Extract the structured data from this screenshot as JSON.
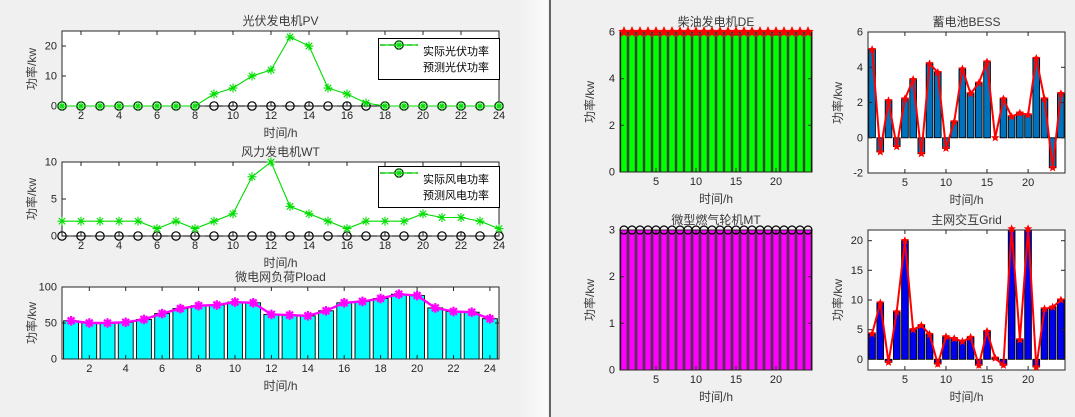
{
  "colors": {
    "figure_bg": "#f0f0f0",
    "axis": "#262626",
    "black": "#000000",
    "green": "#00dd00",
    "de_green": "#00ff00",
    "cyan": "#00ffff",
    "magenta": "#ff00ff",
    "red": "#ff0000",
    "bess_blue": "#0072bd",
    "grid_blue": "#0000ee"
  },
  "chart_data": [
    {
      "type": "line",
      "title": "光伏发电机PV",
      "xlabel": "时间/h",
      "ylabel": "功率/kw",
      "x": [
        1,
        2,
        3,
        4,
        5,
        6,
        7,
        8,
        9,
        10,
        11,
        12,
        13,
        14,
        15,
        16,
        17,
        18,
        19,
        20,
        21,
        22,
        23,
        24
      ],
      "xlim": [
        1,
        24
      ],
      "ylim": [
        0,
        25
      ],
      "xticks": [
        2,
        4,
        6,
        8,
        10,
        12,
        14,
        16,
        18,
        20,
        22,
        24
      ],
      "yticks": [
        0,
        10,
        20
      ],
      "legend_position": "northeast",
      "series": [
        {
          "name": "实际光伏功率",
          "color": "#000000",
          "style": "dashed",
          "marker": "circle",
          "width": 1.1,
          "values": [
            0,
            0,
            0,
            0,
            0,
            0,
            0,
            0,
            0,
            0,
            0,
            0,
            0,
            0,
            0,
            0,
            0,
            0,
            0,
            0,
            0,
            0,
            0,
            0
          ]
        },
        {
          "name": "预测光伏功率",
          "color": "#00dd00",
          "style": "solid",
          "marker": "asterisk",
          "width": 1.1,
          "values": [
            0,
            0,
            0,
            0,
            0,
            0,
            0,
            0,
            4,
            6,
            10,
            12,
            23,
            20,
            6,
            4,
            1,
            0,
            0,
            0,
            0,
            0,
            0,
            0
          ]
        }
      ]
    },
    {
      "type": "line",
      "title": "风力发电机WT",
      "xlabel": "时间/h",
      "ylabel": "功率/kw",
      "x": [
        1,
        2,
        3,
        4,
        5,
        6,
        7,
        8,
        9,
        10,
        11,
        12,
        13,
        14,
        15,
        16,
        17,
        18,
        19,
        20,
        21,
        22,
        23,
        24
      ],
      "xlim": [
        1,
        24
      ],
      "ylim": [
        0,
        10
      ],
      "xticks": [
        2,
        4,
        6,
        8,
        10,
        12,
        14,
        16,
        18,
        20,
        22,
        24
      ],
      "yticks": [
        0,
        5,
        10
      ],
      "legend_position": "northeast",
      "series": [
        {
          "name": "实际风电功率",
          "color": "#000000",
          "style": "dashed",
          "marker": "circle",
          "width": 1.1,
          "values": [
            0,
            0,
            0,
            0,
            0,
            0,
            0,
            0,
            0,
            0,
            0,
            0,
            0,
            0,
            0,
            0,
            0,
            0,
            0,
            0,
            0,
            0,
            0,
            0
          ]
        },
        {
          "name": "预测风电功率",
          "color": "#00dd00",
          "style": "solid",
          "marker": "asterisk",
          "width": 1.1,
          "values": [
            2,
            2,
            2,
            2,
            2,
            1,
            2,
            1,
            2,
            3,
            8,
            10,
            4,
            3,
            2,
            1,
            2,
            2,
            2,
            3,
            2.5,
            2.5,
            2,
            1
          ]
        }
      ]
    },
    {
      "type": "bar+line",
      "title": "微电网负荷Pload",
      "xlabel": "时间/h",
      "ylabel": "功率/kw",
      "x": [
        1,
        2,
        3,
        4,
        5,
        6,
        7,
        8,
        9,
        10,
        11,
        12,
        13,
        14,
        15,
        16,
        17,
        18,
        19,
        20,
        21,
        22,
        23,
        24
      ],
      "xlim": [
        0.5,
        24.5
      ],
      "ylim": [
        0,
        100
      ],
      "xticks": [
        2,
        4,
        6,
        8,
        10,
        12,
        14,
        16,
        18,
        20,
        22,
        24
      ],
      "yticks": [
        0,
        50,
        100
      ],
      "bar_color": "#00ffff",
      "values": [
        53,
        50,
        50,
        51,
        55,
        63,
        70,
        74,
        75,
        79,
        78,
        62,
        61,
        60,
        67,
        78,
        80,
        84,
        90,
        88,
        71,
        66,
        65,
        56
      ],
      "line": {
        "color": "#ff00ff",
        "marker": "asterisk-bold",
        "width": 2.4
      }
    },
    {
      "type": "bar",
      "title": "柴油发电机DE",
      "xlabel": "时间/h",
      "ylabel": "功率/kw",
      "x": [
        1,
        2,
        3,
        4,
        5,
        6,
        7,
        8,
        9,
        10,
        11,
        12,
        13,
        14,
        15,
        16,
        17,
        18,
        19,
        20,
        21,
        22,
        23,
        24
      ],
      "xlim": [
        0.5,
        24.5
      ],
      "ylim": [
        0,
        6
      ],
      "xticks": [
        5,
        10,
        15,
        20
      ],
      "yticks": [
        0,
        2,
        4,
        6
      ],
      "bar_color": "#00ff00",
      "values": [
        6,
        6,
        6,
        6,
        6,
        6,
        6,
        6,
        6,
        6,
        6,
        6,
        6,
        6,
        6,
        6,
        6,
        6,
        6,
        6,
        6,
        6,
        6,
        6
      ],
      "marker": {
        "type": "star5",
        "color": "#ff0000",
        "size": 6
      }
    },
    {
      "type": "bar+line",
      "title": "蓄电池BESS",
      "xlabel": "时间/h",
      "ylabel": "功率/kw",
      "x": [
        1,
        2,
        3,
        4,
        5,
        6,
        7,
        8,
        9,
        10,
        11,
        12,
        13,
        14,
        15,
        16,
        17,
        18,
        19,
        20,
        21,
        22,
        23,
        24
      ],
      "xlim": [
        0.5,
        24.5
      ],
      "ylim": [
        -2,
        6
      ],
      "xticks": [
        5,
        10,
        15,
        20
      ],
      "yticks": [
        -2,
        0,
        2,
        4,
        6
      ],
      "bar_color": "#0072bd",
      "values": [
        5,
        -0.8,
        2.1,
        -0.5,
        2.2,
        3.3,
        -0.9,
        4.2,
        3.7,
        -0.6,
        0.9,
        3.9,
        2.5,
        3.1,
        4.3,
        0,
        2.2,
        1.2,
        1.4,
        1.3,
        4.5,
        2.2,
        -1.7,
        2.5
      ],
      "line": {
        "color": "#ff0000",
        "marker": "star5",
        "width": 2,
        "size": 4.5
      }
    },
    {
      "type": "bar",
      "title": "微型燃气轮机MT",
      "xlabel": "时间/h",
      "ylabel": "功率/kw",
      "x": [
        1,
        2,
        3,
        4,
        5,
        6,
        7,
        8,
        9,
        10,
        11,
        12,
        13,
        14,
        15,
        16,
        17,
        18,
        19,
        20,
        21,
        22,
        23,
        24
      ],
      "xlim": [
        0.5,
        24.5
      ],
      "ylim": [
        0,
        3
      ],
      "xticks": [
        5,
        10,
        15,
        20
      ],
      "yticks": [
        0,
        1,
        2,
        3
      ],
      "bar_color": "#ff00ff",
      "values": [
        3,
        3,
        3,
        3,
        3,
        3,
        3,
        3,
        3,
        3,
        3,
        3,
        3,
        3,
        3,
        3,
        3,
        3,
        3,
        3,
        3,
        3,
        3,
        3
      ],
      "marker": {
        "type": "circle",
        "color": "#000000",
        "size": 4
      }
    },
    {
      "type": "bar+line",
      "title": "主网交互Grid",
      "xlabel": "时间/h",
      "ylabel": "功率/kw",
      "x": [
        1,
        2,
        3,
        4,
        5,
        6,
        7,
        8,
        9,
        10,
        11,
        12,
        13,
        14,
        15,
        16,
        17,
        18,
        19,
        20,
        21,
        22,
        23,
        24
      ],
      "xlim": [
        0.5,
        24.5
      ],
      "ylim": [
        -1.8,
        21.8
      ],
      "xticks": [
        5,
        10,
        15,
        20
      ],
      "yticks": [
        0,
        5,
        10,
        15,
        20
      ],
      "bar_color": "#0000ee",
      "values": [
        4.3,
        9.5,
        -0.5,
        8,
        20,
        5,
        5.7,
        4.2,
        -0.8,
        3.8,
        3.5,
        3,
        3.7,
        -1,
        4.7,
        0.2,
        -1,
        22,
        3.3,
        22,
        -1.3,
        8.5,
        8.8,
        10
      ],
      "line": {
        "color": "#ff0000",
        "marker": "star5",
        "width": 2,
        "size": 4.5
      }
    }
  ]
}
